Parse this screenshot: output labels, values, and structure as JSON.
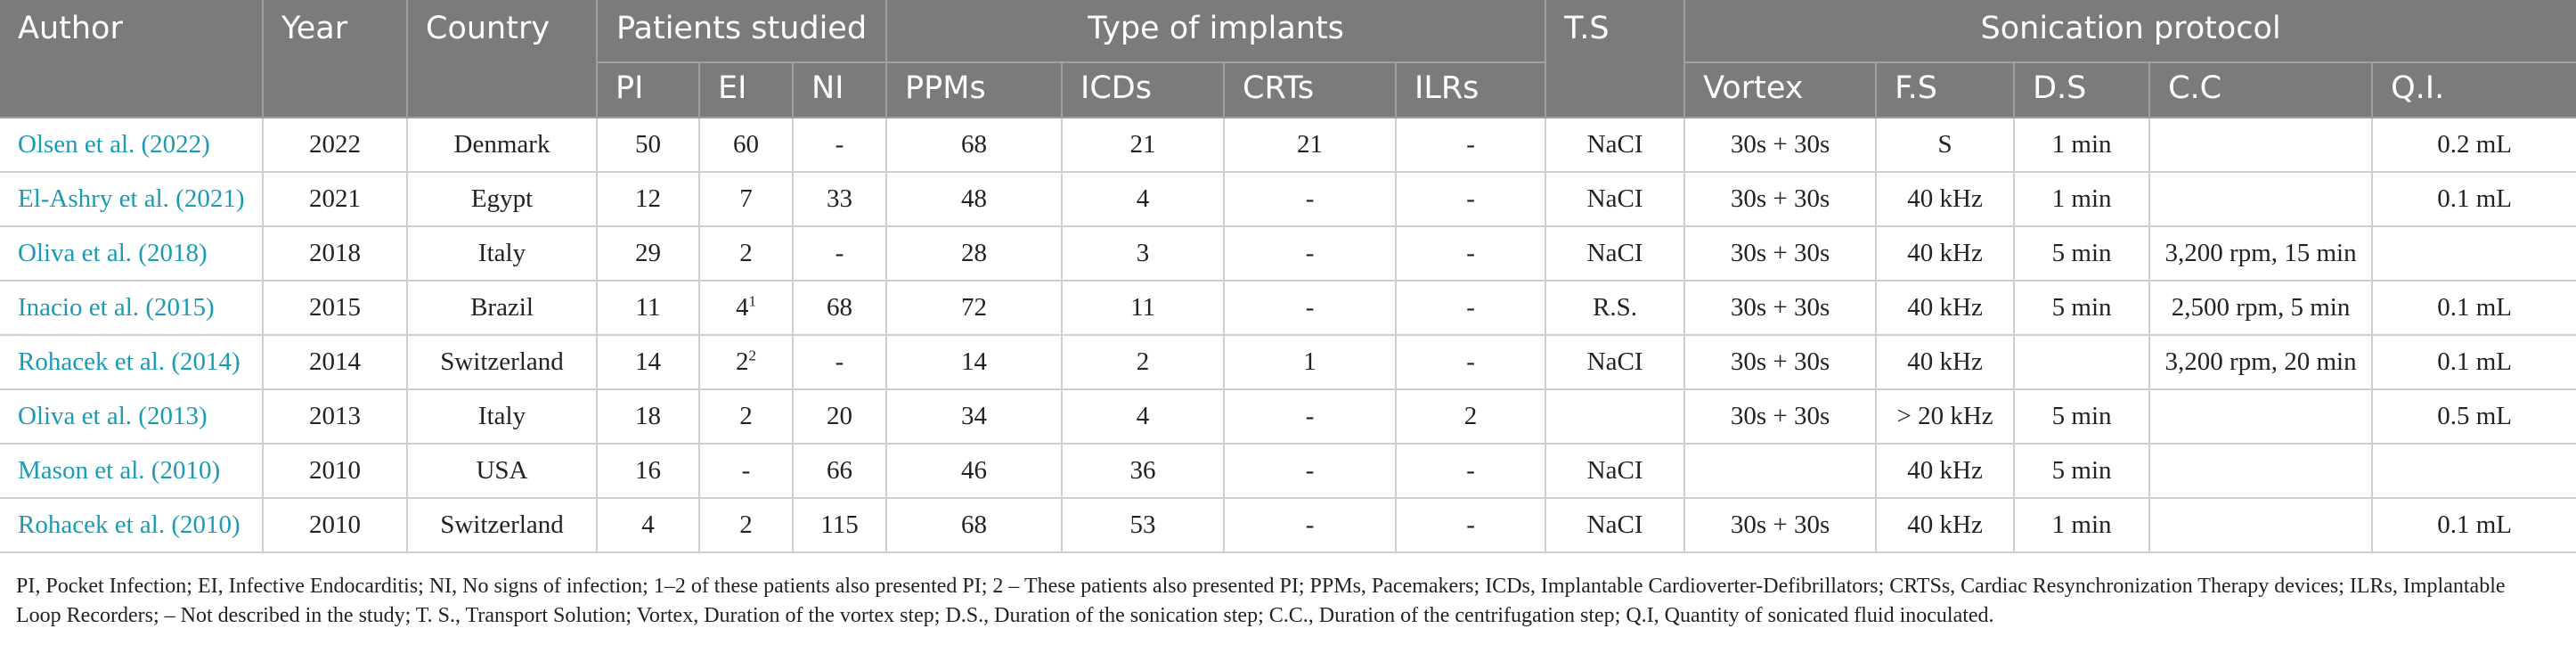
{
  "headers": {
    "author": "Author",
    "year": "Year",
    "country": "Country",
    "patients_studied": "Patients studied",
    "type_of_implants": "Type of implants",
    "ts": "T.S",
    "sonication_protocol": "Sonication protocol",
    "pi": "PI",
    "ei": "EI",
    "ni": "NI",
    "ppms": "PPMs",
    "icds": "ICDs",
    "crts": "CRTs",
    "ilrs": "ILRs",
    "vortex": "Vortex",
    "fs": "F.S",
    "ds": "D.S",
    "cc": "C.C",
    "qi": "Q.I."
  },
  "rows": [
    {
      "author": "Olsen et al. (2022)",
      "year": "2022",
      "country": "Denmark",
      "pi": "50",
      "ei": "60",
      "ei_sup": "",
      "ni": "-",
      "ppms": "68",
      "icds": "21",
      "crts": "21",
      "ilrs": "-",
      "ts": "NaCI",
      "vortex": "30s + 30s",
      "fs": "S",
      "ds": "1 min",
      "cc": "",
      "qi": "0.2 mL"
    },
    {
      "author": "El-Ashry et al. (2021)",
      "year": "2021",
      "country": "Egypt",
      "pi": "12",
      "ei": "7",
      "ei_sup": "",
      "ni": "33",
      "ppms": "48",
      "icds": "4",
      "crts": "-",
      "ilrs": "-",
      "ts": "NaCI",
      "vortex": "30s + 30s",
      "fs": "40 kHz",
      "ds": "1 min",
      "cc": "",
      "qi": "0.1 mL"
    },
    {
      "author": "Oliva et al. (2018)",
      "year": "2018",
      "country": "Italy",
      "pi": "29",
      "ei": "2",
      "ei_sup": "",
      "ni": "-",
      "ppms": "28",
      "icds": "3",
      "crts": "-",
      "ilrs": "-",
      "ts": "NaCI",
      "vortex": "30s + 30s",
      "fs": "40 kHz",
      "ds": "5 min",
      "cc": "3,200 rpm, 15 min",
      "qi": ""
    },
    {
      "author": "Inacio et al. (2015)",
      "year": "2015",
      "country": "Brazil",
      "pi": "11",
      "ei": "4",
      "ei_sup": "1",
      "ni": "68",
      "ppms": "72",
      "icds": "11",
      "crts": "-",
      "ilrs": "-",
      "ts": "R.S.",
      "vortex": "30s + 30s",
      "fs": "40 kHz",
      "ds": "5 min",
      "cc": "2,500 rpm, 5 min",
      "qi": "0.1 mL"
    },
    {
      "author": "Rohacek et al. (2014)",
      "year": "2014",
      "country": "Switzerland",
      "pi": "14",
      "ei": "2",
      "ei_sup": "2",
      "ni": "-",
      "ppms": "14",
      "icds": "2",
      "crts": "1",
      "ilrs": "-",
      "ts": "NaCI",
      "vortex": "30s + 30s",
      "fs": "40 kHz",
      "ds": "",
      "cc": "3,200 rpm, 20 min",
      "qi": "0.1 mL"
    },
    {
      "author": "Oliva et al. (2013)",
      "year": "2013",
      "country": "Italy",
      "pi": "18",
      "ei": "2",
      "ei_sup": "",
      "ni": "20",
      "ppms": "34",
      "icds": "4",
      "crts": "-",
      "ilrs": "2",
      "ts": "",
      "vortex": "30s + 30s",
      "fs": "> 20 kHz",
      "ds": "5 min",
      "cc": "",
      "qi": "0.5 mL"
    },
    {
      "author": "Mason et al. (2010)",
      "year": "2010",
      "country": "USA",
      "pi": "16",
      "ei": "-",
      "ei_sup": "",
      "ni": "66",
      "ppms": "46",
      "icds": "36",
      "crts": "-",
      "ilrs": "-",
      "ts": "NaCI",
      "vortex": "",
      "fs": "40 kHz",
      "ds": "5 min",
      "cc": "",
      "qi": ""
    },
    {
      "author": "Rohacek et al. (2010)",
      "year": "2010",
      "country": "Switzerland",
      "pi": "4",
      "ei": "2",
      "ei_sup": "",
      "ni": "115",
      "ppms": "68",
      "icds": "53",
      "crts": "-",
      "ilrs": "-",
      "ts": "NaCI",
      "vortex": "30s + 30s",
      "fs": "40 kHz",
      "ds": "1 min",
      "cc": "",
      "qi": "0.1 mL"
    }
  ],
  "footnote": "PI, Pocket Infection; EI, Infective Endocarditis; NI, No signs of infection; 1–2 of these patients also presented PI; 2 – These patients also presented PI; PPMs, Pacemakers; ICDs, Implantable Cardioverter-Defibrillators; CRTSs, Cardiac Resynchronization Therapy devices; ILRs, Implantable Loop Recorders; – Not described in the study; T. S., Transport Solution; Vortex, Duration of the vortex step; D.S., Duration of the sonication step; C.C., Duration of the centrifugation step; Q.I, Quantity of sonicated fluid inoculated."
}
